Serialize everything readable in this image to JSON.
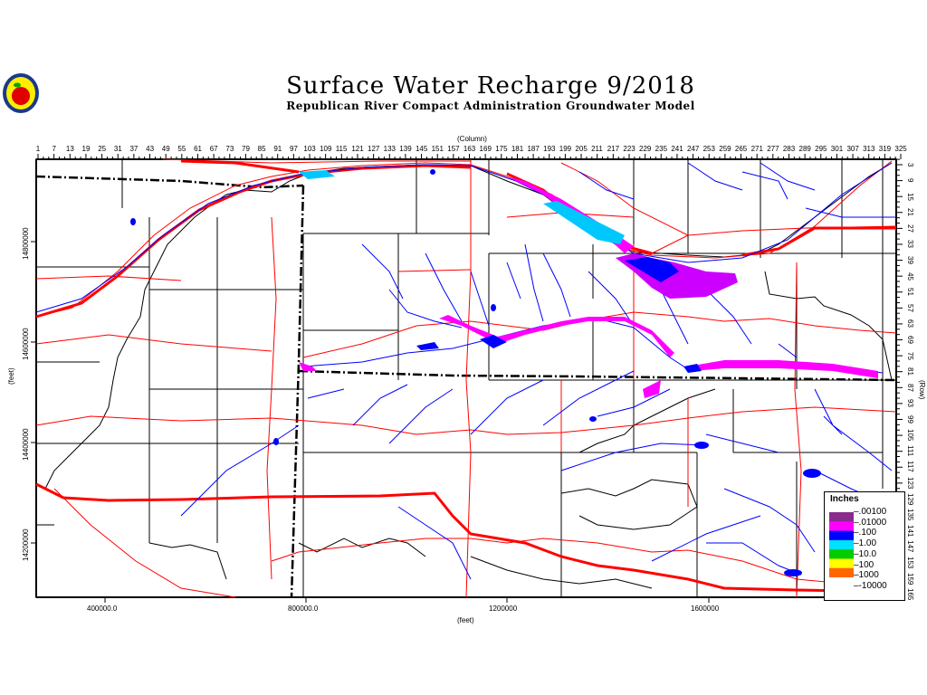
{
  "header": {
    "title": "Surface Water Recharge 9/2018",
    "subtitle": "Republican River Compact Administration Groundwater Model",
    "logo_icon": "apple-seal-logo"
  },
  "axes": {
    "top_label": "(Column)",
    "right_label": "(Row)",
    "left_label": "(feet)",
    "bottom_label": "(feet)",
    "column_labels": [
      "1",
      "7",
      "13",
      "19",
      "25",
      "31",
      "37",
      "43",
      "49",
      "55",
      "61",
      "67",
      "73",
      "79",
      "85",
      "91",
      "97",
      "103",
      "109",
      "115",
      "121",
      "127",
      "133",
      "139",
      "145",
      "151",
      "157",
      "163",
      "169",
      "175",
      "181",
      "187",
      "193",
      "199",
      "205",
      "211",
      "217",
      "223",
      "229",
      "235",
      "241",
      "247",
      "253",
      "259",
      "265",
      "271",
      "277",
      "283",
      "289",
      "295",
      "301",
      "307",
      "313",
      "319",
      "325"
    ],
    "row_labels": [
      "3",
      "9",
      "15",
      "21",
      "27",
      "33",
      "39",
      "45",
      "51",
      "57",
      "63",
      "69",
      "75",
      "81",
      "87",
      "93",
      "99",
      "105",
      "111",
      "117",
      "123",
      "129",
      "135",
      "141",
      "147",
      "153",
      "159",
      "165"
    ],
    "y_ticks": [
      "14800000",
      "14600000",
      "14400000",
      "14200000"
    ],
    "x_ticks": [
      "400000.0",
      "800000.0",
      "1200000",
      "1600000"
    ]
  },
  "legend": {
    "title": "Inches",
    "entries": [
      {
        "label": ".00100",
        "color": "#8b2a8b"
      },
      {
        "label": ".01000",
        "color": "#ff00ff"
      },
      {
        "label": ".100",
        "color": "#0000ff"
      },
      {
        "label": "1.00",
        "color": "#00e0ff"
      },
      {
        "label": "10.0",
        "color": "#00cc00"
      },
      {
        "label": "100",
        "color": "#ffff00"
      },
      {
        "label": "1000",
        "color": "#ff6600"
      },
      {
        "label": "-10000",
        "color": "#ffffff"
      }
    ]
  },
  "colors": {
    "rivers": "#0000ff",
    "roads": "#ff0000",
    "counties": "#000000",
    "recharge_low": "#ff00ff",
    "recharge_mid": "#0000ff"
  }
}
